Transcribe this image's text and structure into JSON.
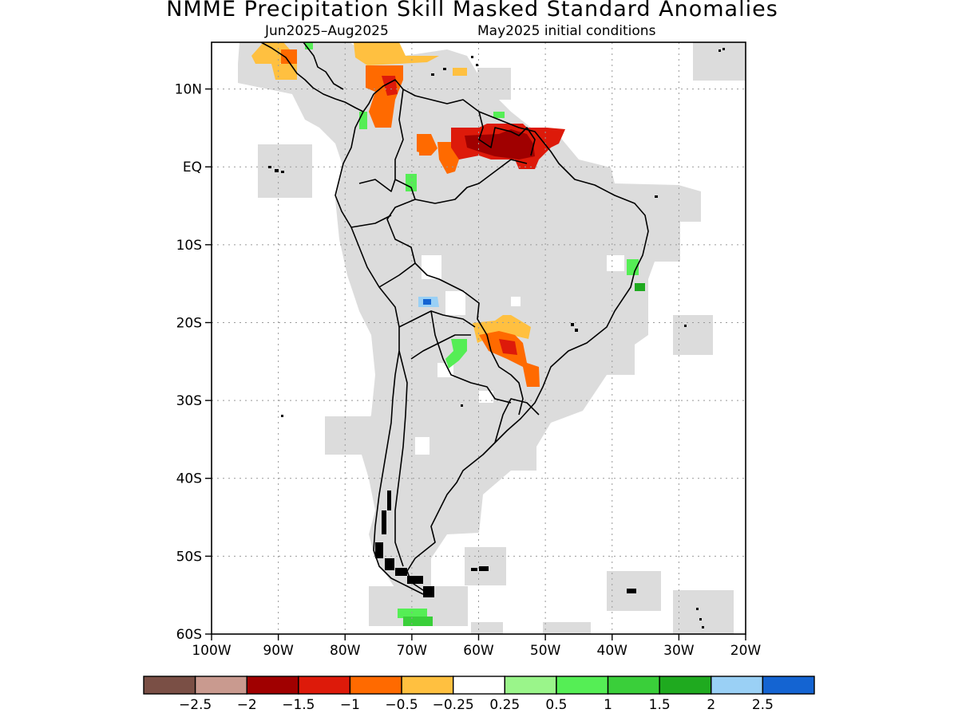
{
  "title": "NMME Precipitation Skill Masked Standard Anomalies",
  "subtitle_left": "Jun2025–Aug2025",
  "subtitle_right": "May2025 initial conditions",
  "axes": {
    "lat_ticks": [
      "10N",
      "EQ",
      "10S",
      "20S",
      "30S",
      "40S",
      "50S",
      "60S"
    ],
    "lon_ticks": [
      "100W",
      "90W",
      "80W",
      "70W",
      "60W",
      "50W",
      "40W",
      "30W",
      "20W"
    ]
  },
  "map_extent": {
    "lon": [
      -100,
      -20
    ],
    "lat": [
      -60,
      16
    ]
  },
  "gridlines": "dotted",
  "legend": {
    "colors": [
      "#7a4f45",
      "#c99a8f",
      "#a00000",
      "#dd1a0a",
      "#ff6a00",
      "#ffc040",
      "#ffffff",
      "#9af58a",
      "#55ee55",
      "#3acf3a",
      "#1faa1f",
      "#9ad0f5",
      "#1464d2"
    ],
    "labels": [
      "−2.5",
      "−2",
      "−1.5",
      "−1",
      "−0.5",
      "−0.25",
      "0.25",
      "0.5",
      "1",
      "1.5",
      "2",
      "2.5"
    ]
  },
  "map_colors": {
    "masked": "#dcdcdc",
    "land_outline": "#000000"
  }
}
